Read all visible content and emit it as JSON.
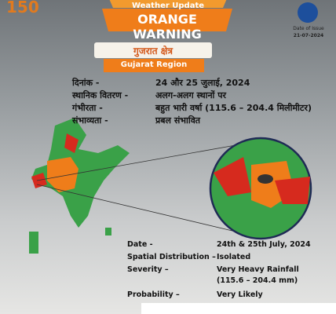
{
  "header": {
    "kicker": "Weather Update",
    "title": "ORANGE WARNING",
    "issue_label": "Date of Issue",
    "issue_date": "21-07-2024",
    "logo_number": "150"
  },
  "region": {
    "hindi": "गुजरात क्षेत्र",
    "english": "Gujarat Region"
  },
  "hindi_rows": [
    [
      "दिनांक -",
      "24 और 25 जुलाई, 2024"
    ],
    [
      "स्थानिक वितरण -",
      "अलग-अलग स्थानों पर"
    ],
    [
      "गंभीरता -",
      "बहुत भारी वर्षा (115.6 – 204.4 मिलीमीटर)"
    ],
    [
      "संभाव्यता -",
      "प्रबल संभावित"
    ]
  ],
  "english_rows": [
    [
      "Date -",
      "24th & 25th July, 2024"
    ],
    [
      "Spatial Distribution –",
      "Isolated"
    ],
    [
      "Severity –",
      "Very Heavy Rainfall",
      "(115.6 – 204.4 mm)"
    ],
    [
      "Probability –",
      "Very Likely"
    ]
  ]
}
